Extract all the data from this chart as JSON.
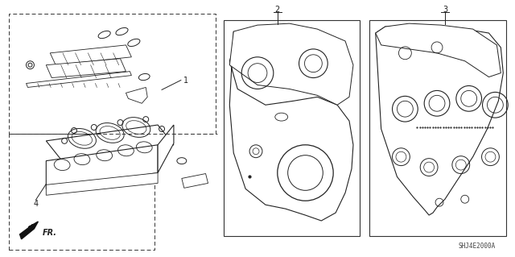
{
  "background_color": "#ffffff",
  "line_color": "#222222",
  "diagram_code": "SHJ4E2000A",
  "figsize": [
    6.4,
    3.19
  ],
  "dpi": 100
}
